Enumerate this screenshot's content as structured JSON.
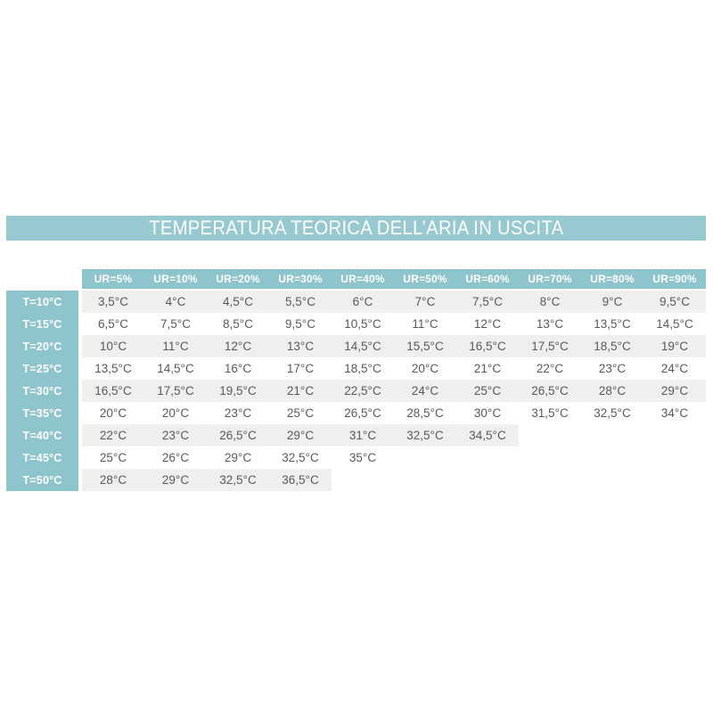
{
  "title": "TEMPERATURA TEORICA DELL’ARIA IN USCITA",
  "colors": {
    "title_bar_teal": "#97c9d1",
    "header_teal": "#8ec4cc",
    "shaded_row_gray": "#f0efef",
    "cell_text": "#58595b",
    "header_text": "#ffffff"
  },
  "table": {
    "column_headers": [
      "UR=5%",
      "UR=10%",
      "UR=20%",
      "UR=30%",
      "UR=40%",
      "UR=50%",
      "UR=60%",
      "UR=70%",
      "UR=80%",
      "UR=90%"
    ],
    "rows": [
      {
        "label": "T=10°C",
        "values": [
          "3,5°C",
          "4°C",
          "4,5°C",
          "5,5°C",
          "6°C",
          "7°C",
          "7,5°C",
          "8°C",
          "9°C",
          "9,5°C"
        ]
      },
      {
        "label": "T=15°C",
        "values": [
          "6,5°C",
          "7,5°C",
          "8,5°C",
          "9,5°C",
          "10,5°C",
          "11°C",
          "12°C",
          "13°C",
          "13,5°C",
          "14,5°C"
        ]
      },
      {
        "label": "T=20°C",
        "values": [
          "10°C",
          "11°C",
          "12°C",
          "13°C",
          "14,5°C",
          "15,5°C",
          "16,5°C",
          "17,5°C",
          "18,5°C",
          "19°C"
        ]
      },
      {
        "label": "T=25°C",
        "values": [
          "13,5°C",
          "14,5°C",
          "16°C",
          "17°C",
          "18,5°C",
          "20°C",
          "21°C",
          "22°C",
          "23°C",
          "24°C"
        ]
      },
      {
        "label": "T=30°C",
        "values": [
          "16,5°C",
          "17,5°C",
          "19,5°C",
          "21°C",
          "22,5°C",
          "24°C",
          "25°C",
          "26,5°C",
          "28°C",
          "29°C"
        ]
      },
      {
        "label": "T=35°C",
        "values": [
          "20°C",
          "20°C",
          "23°C",
          "25°C",
          "26,5°C",
          "28,5°C",
          "30°C",
          "31,5°C",
          "32,5°C",
          "34°C"
        ]
      },
      {
        "label": "T=40°C",
        "values": [
          "22°C",
          "23°C",
          "26,5°C",
          "29°C",
          "31°C",
          "32,5°C",
          "34,5°C",
          "",
          "",
          ""
        ]
      },
      {
        "label": "T=45°C",
        "values": [
          "25°C",
          "26°C",
          "29°C",
          "32,5°C",
          "35°C",
          "",
          "",
          "",
          "",
          ""
        ]
      },
      {
        "label": "T=50°C",
        "values": [
          "28°C",
          "29°C",
          "32,5°C",
          "36,5°C",
          "",
          "",
          "",
          "",
          "",
          ""
        ]
      }
    ]
  }
}
